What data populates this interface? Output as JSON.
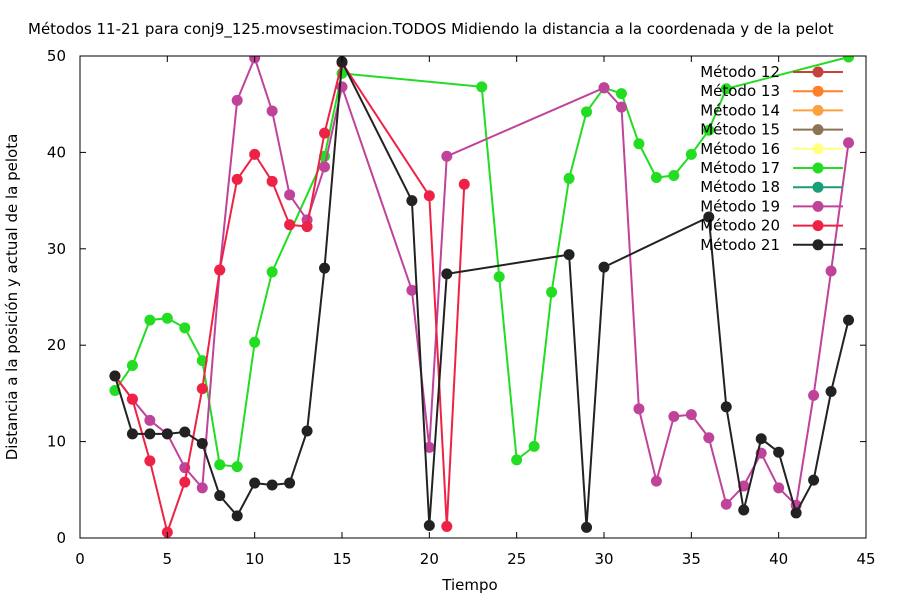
{
  "chart_data": {
    "type": "line",
    "title": "Métodos 11-21 para conj9_125.movsestimacion.TODOS Midiendo la distancia a la coordenada y de la pelot",
    "xlabel": "Tiempo",
    "ylabel": "Distancia a la posición y actual de la pelota",
    "xlim": [
      0,
      45
    ],
    "ylim": [
      0,
      50
    ],
    "xticks": [
      "0",
      "5",
      "10",
      "15",
      "20",
      "25",
      "30",
      "35",
      "40",
      "45"
    ],
    "yticks": [
      "0",
      "10",
      "20",
      "30",
      "40",
      "50"
    ],
    "grid": false,
    "legend_position": "top-right",
    "series": [
      {
        "name": "Método 12",
        "color": "#c8413a",
        "points": []
      },
      {
        "name": "Método 13",
        "color": "#ff7f2a",
        "points": []
      },
      {
        "name": "Método 14",
        "color": "#ffa040",
        "points": []
      },
      {
        "name": "Método 15",
        "color": "#8b7355",
        "points": []
      },
      {
        "name": "Método 16",
        "color": "#ffff80",
        "points": []
      },
      {
        "name": "Método 17",
        "color": "#22dd22",
        "points": [
          [
            2,
            15.3
          ],
          [
            3,
            17.9
          ],
          [
            4,
            22.6
          ],
          [
            5,
            22.8
          ],
          [
            6,
            21.8
          ],
          [
            7,
            18.4
          ],
          [
            8,
            7.6
          ],
          [
            9,
            7.4
          ],
          [
            10,
            20.3
          ],
          [
            11,
            27.6
          ],
          [
            14,
            39.6
          ],
          [
            15,
            48.2
          ],
          [
            23,
            46.8
          ],
          [
            24,
            27.1
          ],
          [
            25,
            8.1
          ],
          [
            26,
            9.5
          ],
          [
            27,
            25.5
          ],
          [
            28,
            37.3
          ],
          [
            29,
            44.2
          ],
          [
            30,
            46.7
          ],
          [
            31,
            46.1
          ],
          [
            32,
            40.9
          ],
          [
            33,
            37.4
          ],
          [
            34,
            37.6
          ],
          [
            35,
            39.8
          ],
          [
            36,
            42.3
          ],
          [
            37,
            46.6
          ],
          [
            44,
            49.9
          ]
        ]
      },
      {
        "name": "Método 18",
        "color": "#1a9e77",
        "points": []
      },
      {
        "name": "Método 19",
        "color": "#c0439a",
        "points": [
          [
            2,
            16.8
          ],
          [
            3,
            14.4
          ],
          [
            4,
            12.2
          ],
          [
            5,
            10.8
          ],
          [
            6,
            7.3
          ],
          [
            7,
            5.2
          ],
          [
            8,
            27.8
          ],
          [
            9,
            45.4
          ],
          [
            10,
            49.8
          ],
          [
            11,
            44.3
          ],
          [
            12,
            35.6
          ],
          [
            13,
            33.0
          ],
          [
            14,
            38.5
          ],
          [
            15,
            46.8
          ],
          [
            19,
            25.7
          ],
          [
            20,
            9.4
          ],
          [
            21,
            39.6
          ],
          [
            30,
            46.7
          ],
          [
            31,
            44.7
          ],
          [
            32,
            13.4
          ],
          [
            33,
            5.9
          ],
          [
            34,
            12.6
          ],
          [
            35,
            12.8
          ],
          [
            36,
            10.4
          ],
          [
            37,
            3.5
          ],
          [
            38,
            5.4
          ],
          [
            39,
            8.8
          ],
          [
            40,
            5.2
          ],
          [
            41,
            3.4
          ],
          [
            42,
            14.8
          ],
          [
            43,
            27.7
          ],
          [
            44,
            41.0
          ]
        ]
      },
      {
        "name": "Método 20",
        "color": "#ee2244",
        "points": [
          [
            2,
            16.8
          ],
          [
            3,
            14.4
          ],
          [
            4,
            8.0
          ],
          [
            5,
            0.6
          ],
          [
            6,
            5.8
          ],
          [
            7,
            15.5
          ],
          [
            8,
            27.8
          ],
          [
            9,
            37.2
          ],
          [
            10,
            39.8
          ],
          [
            11,
            37.0
          ],
          [
            12,
            32.5
          ],
          [
            13,
            32.3
          ],
          [
            14,
            42.0
          ],
          [
            15,
            49.3
          ],
          [
            20,
            35.5
          ],
          [
            21,
            1.2
          ],
          [
            22,
            36.7
          ]
        ]
      },
      {
        "name": "Método 21",
        "color": "#222222",
        "points": [
          [
            2,
            16.8
          ],
          [
            3,
            10.8
          ],
          [
            4,
            10.8
          ],
          [
            5,
            10.8
          ],
          [
            6,
            11.0
          ],
          [
            7,
            9.8
          ],
          [
            8,
            4.4
          ],
          [
            9,
            2.3
          ],
          [
            10,
            5.7
          ],
          [
            11,
            5.5
          ],
          [
            12,
            5.7
          ],
          [
            13,
            11.1
          ],
          [
            14,
            28.0
          ],
          [
            15,
            49.4
          ],
          [
            19,
            35.0
          ],
          [
            20,
            1.3
          ],
          [
            21,
            27.4
          ],
          [
            28,
            29.4
          ],
          [
            29,
            1.1
          ],
          [
            30,
            28.1
          ],
          [
            36,
            33.3
          ],
          [
            37,
            13.6
          ],
          [
            38,
            2.9
          ],
          [
            39,
            10.3
          ],
          [
            40,
            8.9
          ],
          [
            41,
            2.6
          ],
          [
            42,
            6.0
          ],
          [
            43,
            15.2
          ],
          [
            44,
            22.6
          ]
        ]
      }
    ]
  }
}
